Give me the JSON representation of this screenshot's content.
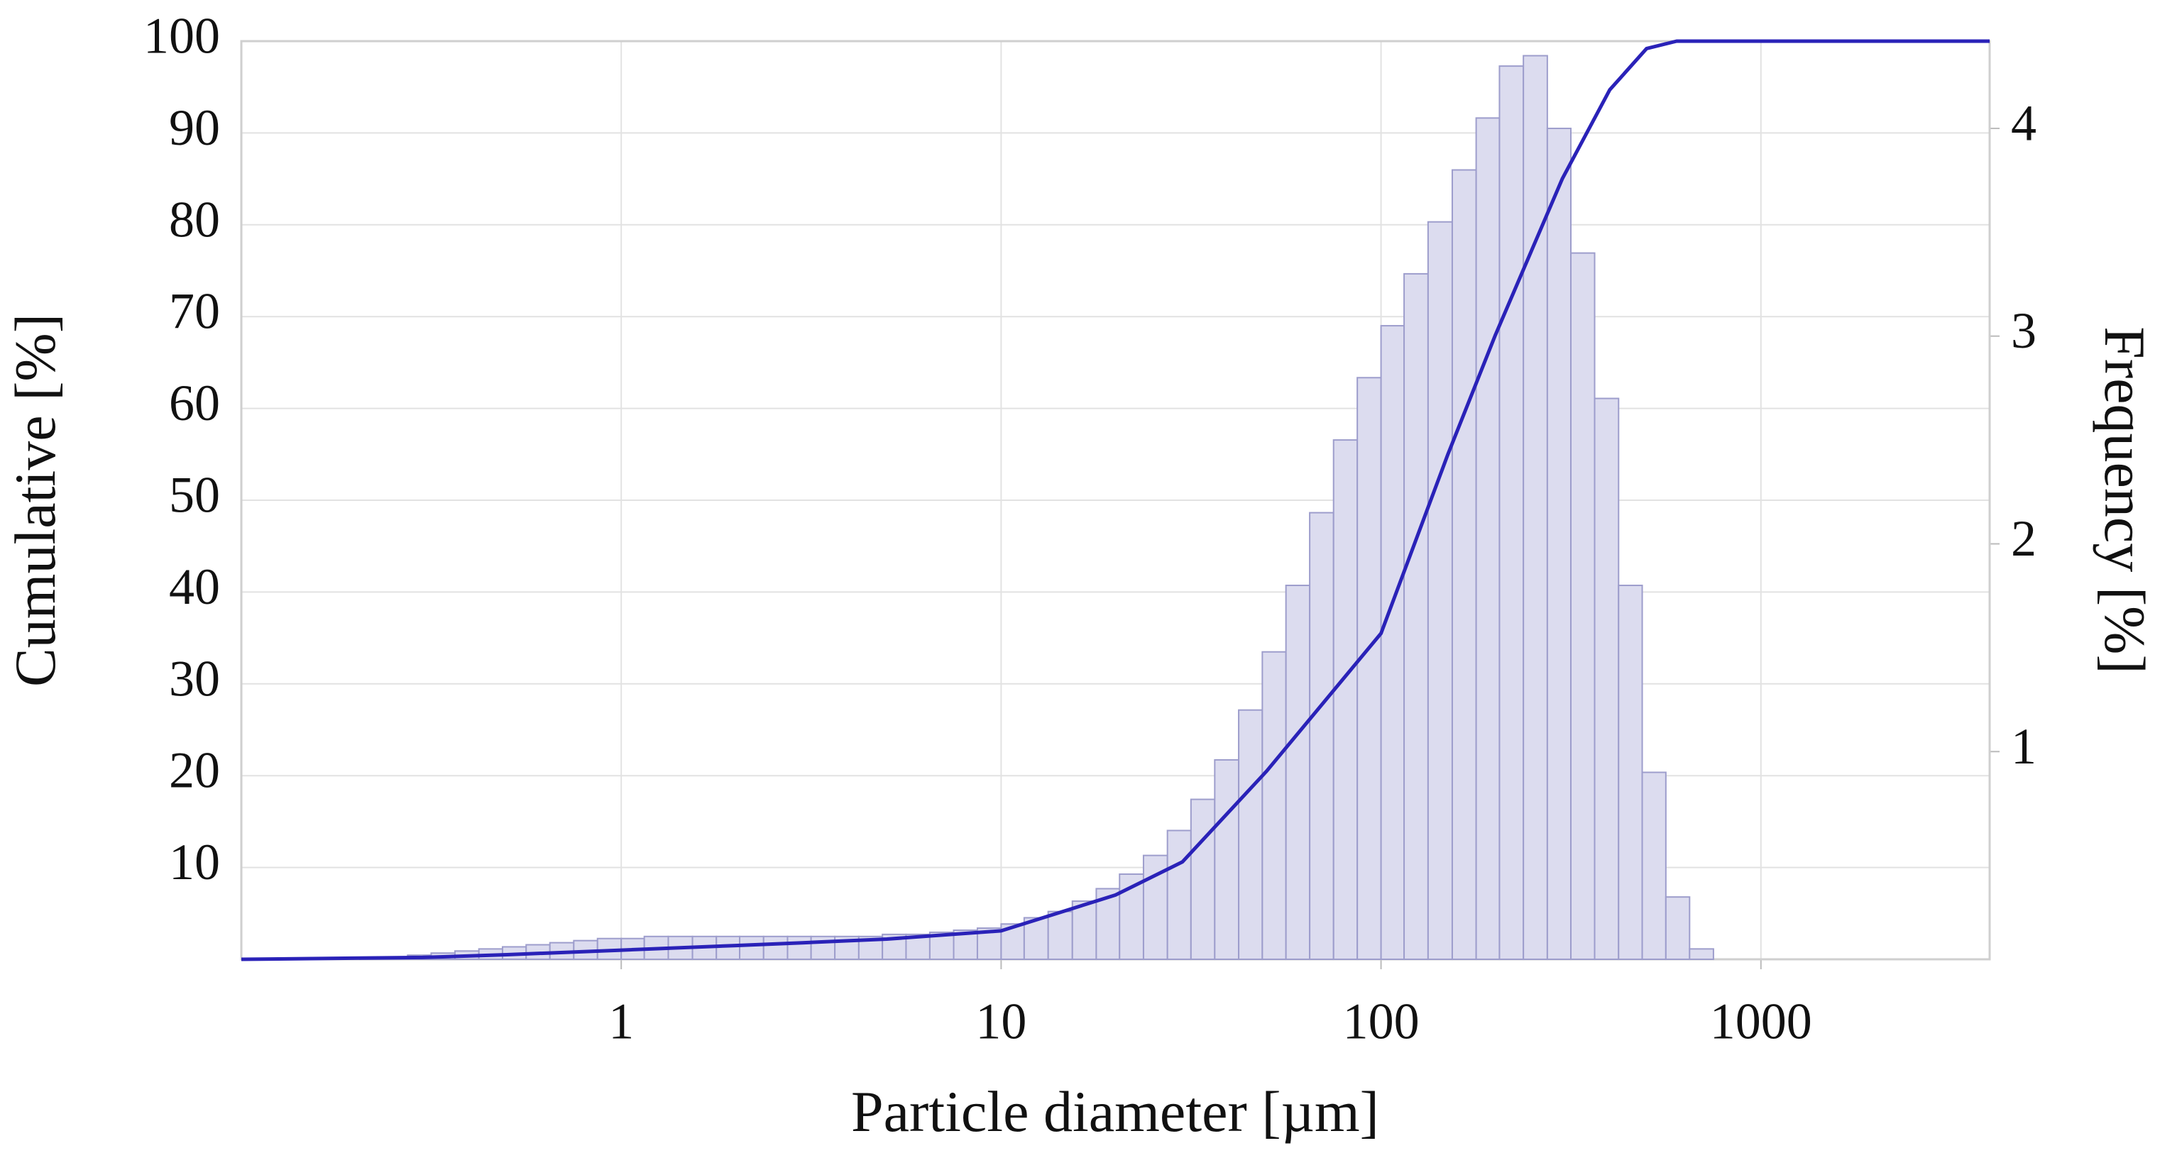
{
  "chart_data": {
    "type": "histogram",
    "xlabel": "Particle diameter [µm]",
    "ylabel": "Cumulative [%]",
    "y2label": "Frequency [%]",
    "xscale": "log",
    "xlim": [
      0.1,
      4000
    ],
    "xticks": [
      1,
      10,
      100,
      1000
    ],
    "ylim": [
      0,
      100
    ],
    "yticks": [
      10,
      20,
      30,
      40,
      50,
      60,
      70,
      80,
      90,
      100
    ],
    "y2lim": [
      0,
      4.42
    ],
    "y2ticks": [
      1,
      2,
      3,
      4
    ],
    "grid": true,
    "bins": [
      0.1,
      0.115,
      0.133,
      0.154,
      0.178,
      0.205,
      0.237,
      0.274,
      0.316,
      0.365,
      0.422,
      0.487,
      0.562,
      0.649,
      0.75,
      0.866,
      1,
      1.15,
      1.33,
      1.54,
      1.78,
      2.05,
      2.37,
      2.74,
      3.16,
      3.65,
      4.22,
      4.87,
      5.62,
      6.49,
      7.5,
      8.66,
      10,
      11.5,
      13.3,
      15.4,
      17.8,
      20.5,
      23.7,
      27.4,
      31.6,
      36.5,
      42.2,
      48.7,
      56.2,
      64.9,
      75,
      86.6,
      100,
      115,
      133,
      154,
      178,
      205,
      237,
      274,
      316,
      365,
      422,
      487,
      562,
      649,
      750,
      866,
      1000
    ],
    "values": [
      0,
      0,
      0,
      0,
      0,
      0.01,
      0.01,
      0.02,
      0.03,
      0.04,
      0.05,
      0.06,
      0.07,
      0.08,
      0.09,
      0.1,
      0.1,
      0.11,
      0.11,
      0.11,
      0.11,
      0.11,
      0.11,
      0.11,
      0.11,
      0.11,
      0.11,
      0.12,
      0.12,
      0.13,
      0.14,
      0.15,
      0.17,
      0.2,
      0.23,
      0.28,
      0.34,
      0.41,
      0.5,
      0.62,
      0.77,
      0.96,
      1.2,
      1.48,
      1.8,
      2.15,
      2.5,
      2.8,
      3.05,
      3.3,
      3.55,
      3.8,
      4.05,
      4.3,
      4.35,
      4.0,
      3.4,
      2.7,
      1.8,
      0.9,
      0.3,
      0.05,
      0,
      0
    ],
    "axis": "y2",
    "color": "#dcdcef",
    "edge_color": "#9d9dcc",
    "line": {
      "color": "#2a22b8",
      "x": [
        0.1,
        0.3,
        0.5,
        1,
        2,
        3,
        5,
        10,
        20,
        30,
        50,
        100,
        150,
        200,
        300,
        400,
        500,
        600,
        4000
      ],
      "values": [
        0,
        0.2,
        0.5,
        1,
        1.5,
        1.8,
        2.2,
        3.1,
        7,
        10.6,
        20.5,
        35.5,
        55,
        68,
        85,
        94.7,
        99.2,
        100,
        100
      ]
    }
  }
}
